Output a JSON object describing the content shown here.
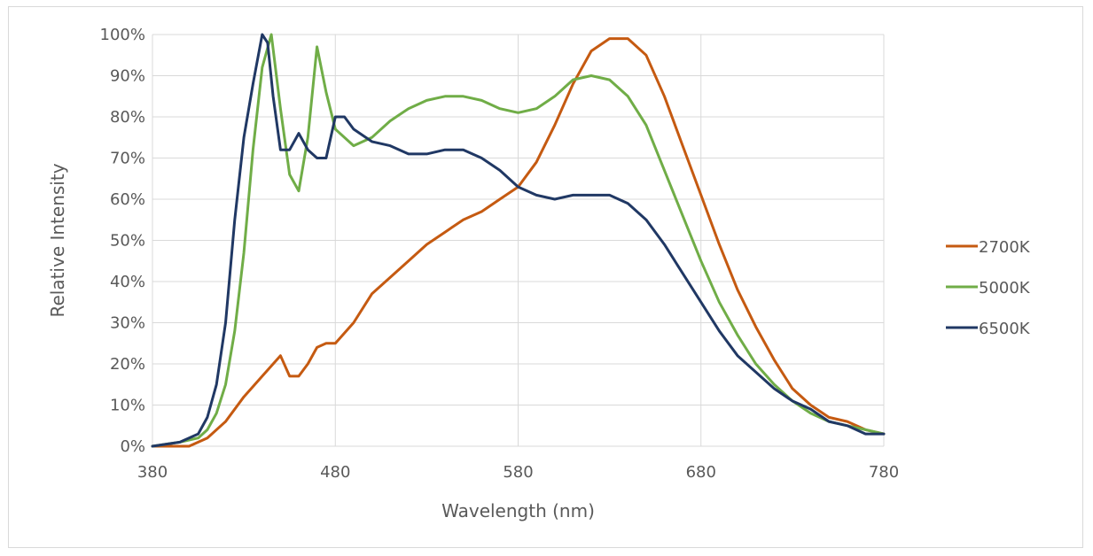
{
  "chart_data": {
    "type": "line",
    "title": "",
    "xlabel": "Wavelength (nm)",
    "ylabel": "Relative Intensity",
    "xlim": [
      380,
      780
    ],
    "ylim": [
      0,
      100
    ],
    "x_ticks": [
      380,
      480,
      580,
      680,
      780
    ],
    "y_ticks": [
      0,
      10,
      20,
      30,
      40,
      50,
      60,
      70,
      80,
      90,
      100
    ],
    "y_tick_labels": [
      "0%",
      "10%",
      "20%",
      "30%",
      "40%",
      "50%",
      "60%",
      "70%",
      "80%",
      "90%",
      "100%"
    ],
    "grid": "horizontal and vertical",
    "legend": "right",
    "series": [
      {
        "name": "2700K",
        "color": "#c55a11",
        "x": [
          380,
          400,
          410,
          420,
          430,
          440,
          450,
          455,
          460,
          465,
          470,
          475,
          480,
          490,
          500,
          510,
          520,
          530,
          540,
          550,
          560,
          570,
          580,
          590,
          600,
          610,
          620,
          630,
          640,
          650,
          660,
          670,
          680,
          690,
          700,
          710,
          720,
          730,
          740,
          750,
          760,
          770,
          780
        ],
        "y": [
          0,
          0,
          2,
          6,
          12,
          17,
          22,
          17,
          17,
          20,
          24,
          25,
          25,
          30,
          37,
          41,
          45,
          49,
          52,
          55,
          57,
          60,
          63,
          69,
          78,
          88,
          96,
          99,
          99,
          95,
          85,
          73,
          61,
          49,
          38,
          29,
          21,
          14,
          10,
          7,
          6,
          4,
          3
        ]
      },
      {
        "name": "5000K",
        "color": "#70ad47",
        "x": [
          380,
          395,
          405,
          410,
          415,
          420,
          425,
          430,
          435,
          440,
          445,
          450,
          455,
          460,
          465,
          470,
          475,
          480,
          490,
          500,
          510,
          520,
          530,
          540,
          550,
          560,
          570,
          580,
          590,
          600,
          610,
          620,
          630,
          640,
          650,
          660,
          670,
          680,
          690,
          700,
          710,
          720,
          730,
          740,
          750,
          760,
          770,
          780
        ],
        "y": [
          0,
          1,
          2,
          4,
          8,
          15,
          28,
          47,
          72,
          92,
          100,
          82,
          66,
          62,
          75,
          97,
          86,
          77,
          73,
          75,
          79,
          82,
          84,
          85,
          85,
          84,
          82,
          81,
          82,
          85,
          89,
          90,
          89,
          85,
          78,
          67,
          56,
          45,
          35,
          27,
          20,
          15,
          11,
          8,
          6,
          5,
          4,
          3
        ]
      },
      {
        "name": "6500K",
        "color": "#203864",
        "x": [
          380,
          395,
          405,
          410,
          415,
          420,
          425,
          430,
          435,
          440,
          443,
          446,
          450,
          455,
          460,
          465,
          470,
          475,
          480,
          485,
          490,
          500,
          510,
          520,
          530,
          540,
          550,
          560,
          570,
          580,
          590,
          600,
          610,
          620,
          630,
          640,
          650,
          660,
          670,
          680,
          690,
          700,
          710,
          720,
          730,
          740,
          750,
          760,
          770,
          780
        ],
        "y": [
          0,
          1,
          3,
          7,
          15,
          30,
          55,
          75,
          88,
          100,
          98,
          85,
          72,
          72,
          76,
          72,
          70,
          70,
          80,
          80,
          77,
          74,
          73,
          71,
          71,
          72,
          72,
          70,
          67,
          63,
          61,
          60,
          61,
          61,
          61,
          59,
          55,
          49,
          42,
          35,
          28,
          22,
          18,
          14,
          11,
          9,
          6,
          5,
          3,
          3
        ]
      }
    ]
  }
}
